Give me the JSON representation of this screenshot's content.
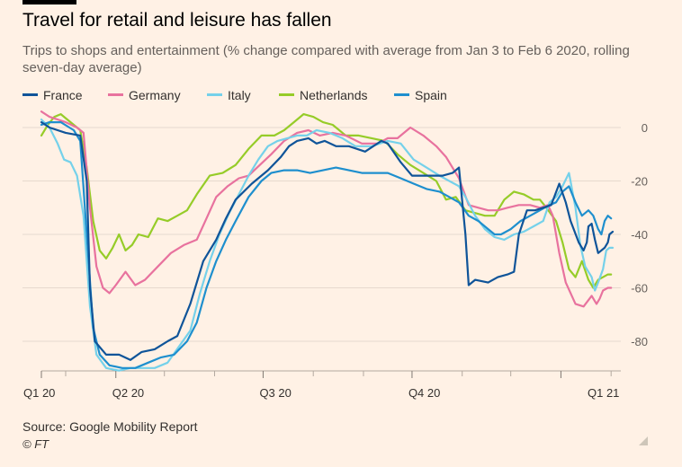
{
  "header": {
    "title": "Travel for retail and leisure has fallen",
    "subtitle": "Trips to shops and entertainment (% change compared with average from Jan 3 to Feb 6 2020, rolling seven-day average)"
  },
  "footer": {
    "source": "Source: Google Mobility Report",
    "credit": "© FT"
  },
  "chart_data": {
    "type": "line",
    "title": "Travel for retail and leisure has fallen",
    "subtitle": "Trips to shops and entertainment (% change compared with average from Jan 3 to Feb 6 2020, rolling seven-day average)",
    "xlabel": "",
    "ylabel": "",
    "y_axis_side": "right",
    "ylim": [
      -92,
      8
    ],
    "y_ticks": [
      0,
      -20,
      -40,
      -60,
      -80
    ],
    "y_tick_labels": [
      "0",
      "-20",
      "-40",
      "-60",
      "-80"
    ],
    "x_unit": "days since Feb 15 2020",
    "xlim": [
      0,
      358
    ],
    "x_ticks": [
      {
        "x": 0,
        "label": "Q1 20"
      },
      {
        "x": 46,
        "label": "Q2 20"
      },
      {
        "x": 137,
        "label": "Q3 20"
      },
      {
        "x": 229,
        "label": "Q4 20"
      },
      {
        "x": 321,
        "label": "Q1 21"
      }
    ],
    "x_minor_ticks": [
      15,
      76,
      107,
      168,
      199,
      260,
      290,
      352
    ],
    "grid": true,
    "legend_position": "top-left",
    "series": [
      {
        "name": "France",
        "color": "#0f5499",
        "points": [
          [
            0,
            2
          ],
          [
            5,
            0
          ],
          [
            15,
            -2
          ],
          [
            24,
            -3
          ],
          [
            28,
            -20
          ],
          [
            30,
            -60
          ],
          [
            33,
            -80
          ],
          [
            40,
            -85
          ],
          [
            48,
            -85
          ],
          [
            55,
            -87
          ],
          [
            62,
            -84
          ],
          [
            70,
            -83
          ],
          [
            78,
            -80
          ],
          [
            84,
            -78
          ],
          [
            92,
            -66
          ],
          [
            100,
            -50
          ],
          [
            108,
            -42
          ],
          [
            114,
            -34
          ],
          [
            120,
            -27
          ],
          [
            130,
            -21
          ],
          [
            140,
            -16
          ],
          [
            148,
            -11
          ],
          [
            153,
            -7
          ],
          [
            158,
            -5
          ],
          [
            165,
            -4
          ],
          [
            170,
            -6
          ],
          [
            175,
            -5
          ],
          [
            182,
            -7
          ],
          [
            190,
            -7
          ],
          [
            200,
            -9
          ],
          [
            210,
            -5
          ],
          [
            214,
            -6
          ],
          [
            222,
            -13
          ],
          [
            229,
            -18
          ],
          [
            238,
            -18
          ],
          [
            248,
            -18
          ],
          [
            254,
            -17
          ],
          [
            258,
            -15
          ],
          [
            262,
            -40
          ],
          [
            264,
            -59
          ],
          [
            268,
            -57
          ],
          [
            276,
            -58
          ],
          [
            282,
            -56
          ],
          [
            288,
            -55
          ],
          [
            292,
            -54
          ],
          [
            295,
            -40
          ],
          [
            300,
            -31
          ],
          [
            305,
            -31
          ],
          [
            310,
            -30
          ],
          [
            315,
            -29
          ],
          [
            320,
            -21
          ],
          [
            324,
            -28
          ],
          [
            327,
            -35
          ],
          [
            332,
            -43
          ],
          [
            335,
            -46
          ],
          [
            337,
            -43
          ],
          [
            338,
            -37
          ],
          [
            340,
            -36
          ],
          [
            342,
            -42
          ],
          [
            344,
            -47
          ],
          [
            348,
            -45
          ],
          [
            350,
            -43
          ],
          [
            351,
            -40
          ],
          [
            353,
            -39
          ]
        ]
      },
      {
        "name": "Germany",
        "color": "#e8729e",
        "points": [
          [
            0,
            6
          ],
          [
            5,
            4
          ],
          [
            15,
            2
          ],
          [
            22,
            0
          ],
          [
            26,
            -2
          ],
          [
            30,
            -30
          ],
          [
            34,
            -52
          ],
          [
            38,
            -60
          ],
          [
            42,
            -62
          ],
          [
            46,
            -59
          ],
          [
            52,
            -54
          ],
          [
            58,
            -59
          ],
          [
            64,
            -57
          ],
          [
            72,
            -52
          ],
          [
            80,
            -47
          ],
          [
            88,
            -44
          ],
          [
            96,
            -42
          ],
          [
            102,
            -34
          ],
          [
            108,
            -26
          ],
          [
            115,
            -22
          ],
          [
            122,
            -19
          ],
          [
            128,
            -18
          ],
          [
            135,
            -14
          ],
          [
            142,
            -10
          ],
          [
            150,
            -5
          ],
          [
            158,
            -2
          ],
          [
            165,
            -1
          ],
          [
            172,
            -3
          ],
          [
            180,
            -2
          ],
          [
            188,
            -3
          ],
          [
            198,
            -6
          ],
          [
            208,
            -6
          ],
          [
            214,
            -4
          ],
          [
            220,
            -4
          ],
          [
            228,
            0
          ],
          [
            236,
            -3
          ],
          [
            244,
            -7
          ],
          [
            250,
            -11
          ],
          [
            258,
            -19
          ],
          [
            264,
            -29
          ],
          [
            270,
            -30
          ],
          [
            276,
            -31
          ],
          [
            282,
            -31
          ],
          [
            288,
            -30
          ],
          [
            295,
            -29
          ],
          [
            302,
            -29
          ],
          [
            308,
            -30
          ],
          [
            313,
            -29
          ],
          [
            316,
            -33
          ],
          [
            320,
            -47
          ],
          [
            324,
            -58
          ],
          [
            330,
            -66
          ],
          [
            335,
            -67
          ],
          [
            340,
            -63
          ],
          [
            343,
            -66
          ],
          [
            345,
            -64
          ],
          [
            347,
            -61
          ],
          [
            350,
            -60
          ],
          [
            352,
            -60
          ]
        ]
      },
      {
        "name": "Italy",
        "color": "#75d1ea",
        "points": [
          [
            0,
            3
          ],
          [
            5,
            0
          ],
          [
            10,
            -6
          ],
          [
            14,
            -12
          ],
          [
            18,
            -13
          ],
          [
            22,
            -18
          ],
          [
            26,
            -33
          ],
          [
            30,
            -67
          ],
          [
            34,
            -85
          ],
          [
            40,
            -90
          ],
          [
            48,
            -91
          ],
          [
            55,
            -90
          ],
          [
            62,
            -90
          ],
          [
            70,
            -90
          ],
          [
            78,
            -88
          ],
          [
            85,
            -82
          ],
          [
            92,
            -76
          ],
          [
            98,
            -62
          ],
          [
            104,
            -50
          ],
          [
            110,
            -40
          ],
          [
            116,
            -32
          ],
          [
            122,
            -25
          ],
          [
            128,
            -18
          ],
          [
            134,
            -12
          ],
          [
            140,
            -7
          ],
          [
            146,
            -5
          ],
          [
            152,
            -4
          ],
          [
            158,
            -3
          ],
          [
            164,
            -3
          ],
          [
            170,
            -1
          ],
          [
            178,
            -2
          ],
          [
            186,
            -4
          ],
          [
            194,
            -7
          ],
          [
            204,
            -7
          ],
          [
            214,
            -5
          ],
          [
            222,
            -6
          ],
          [
            230,
            -12
          ],
          [
            238,
            -15
          ],
          [
            246,
            -18
          ],
          [
            252,
            -20
          ],
          [
            258,
            -22
          ],
          [
            262,
            -26
          ],
          [
            268,
            -33
          ],
          [
            274,
            -38
          ],
          [
            280,
            -41
          ],
          [
            286,
            -42
          ],
          [
            292,
            -40
          ],
          [
            298,
            -39
          ],
          [
            304,
            -37
          ],
          [
            310,
            -35
          ],
          [
            314,
            -28
          ],
          [
            318,
            -26
          ],
          [
            322,
            -22
          ],
          [
            326,
            -17
          ],
          [
            330,
            -30
          ],
          [
            333,
            -44
          ],
          [
            336,
            -52
          ],
          [
            340,
            -56
          ],
          [
            342,
            -61
          ],
          [
            344,
            -58
          ],
          [
            347,
            -53
          ],
          [
            349,
            -46
          ],
          [
            351,
            -45
          ],
          [
            353,
            -45
          ]
        ]
      },
      {
        "name": "Netherlands",
        "color": "#96cc28",
        "points": [
          [
            0,
            -3
          ],
          [
            4,
            1
          ],
          [
            8,
            4
          ],
          [
            12,
            5
          ],
          [
            16,
            3
          ],
          [
            20,
            1
          ],
          [
            24,
            -1
          ],
          [
            28,
            -15
          ],
          [
            32,
            -35
          ],
          [
            36,
            -46
          ],
          [
            40,
            -49
          ],
          [
            44,
            -45
          ],
          [
            48,
            -40
          ],
          [
            52,
            -46
          ],
          [
            56,
            -44
          ],
          [
            60,
            -40
          ],
          [
            66,
            -41
          ],
          [
            72,
            -34
          ],
          [
            78,
            -35
          ],
          [
            84,
            -33
          ],
          [
            90,
            -31
          ],
          [
            96,
            -25
          ],
          [
            104,
            -18
          ],
          [
            112,
            -17
          ],
          [
            120,
            -14
          ],
          [
            128,
            -8
          ],
          [
            136,
            -3
          ],
          [
            144,
            -3
          ],
          [
            150,
            -1
          ],
          [
            156,
            2
          ],
          [
            162,
            5
          ],
          [
            168,
            4
          ],
          [
            174,
            2
          ],
          [
            180,
            1
          ],
          [
            188,
            -3
          ],
          [
            196,
            -3
          ],
          [
            204,
            -4
          ],
          [
            212,
            -5
          ],
          [
            220,
            -10
          ],
          [
            228,
            -14
          ],
          [
            236,
            -17
          ],
          [
            244,
            -20
          ],
          [
            250,
            -27
          ],
          [
            256,
            -26
          ],
          [
            262,
            -31
          ],
          [
            268,
            -32
          ],
          [
            274,
            -33
          ],
          [
            280,
            -33
          ],
          [
            286,
            -27
          ],
          [
            292,
            -24
          ],
          [
            298,
            -25
          ],
          [
            304,
            -27
          ],
          [
            308,
            -27
          ],
          [
            312,
            -30
          ],
          [
            318,
            -35
          ],
          [
            322,
            -43
          ],
          [
            326,
            -53
          ],
          [
            330,
            -56
          ],
          [
            334,
            -50
          ],
          [
            338,
            -57
          ],
          [
            341,
            -60
          ],
          [
            344,
            -57
          ],
          [
            347,
            -56
          ],
          [
            350,
            -55
          ],
          [
            352,
            -55
          ]
        ]
      },
      {
        "name": "Spain",
        "color": "#1e8fce",
        "points": [
          [
            0,
            1
          ],
          [
            5,
            2
          ],
          [
            12,
            2
          ],
          [
            20,
            -1
          ],
          [
            24,
            -5
          ],
          [
            28,
            -40
          ],
          [
            32,
            -75
          ],
          [
            36,
            -85
          ],
          [
            42,
            -89
          ],
          [
            50,
            -90
          ],
          [
            58,
            -90
          ],
          [
            66,
            -88
          ],
          [
            74,
            -86
          ],
          [
            82,
            -85
          ],
          [
            90,
            -80
          ],
          [
            96,
            -73
          ],
          [
            102,
            -60
          ],
          [
            108,
            -50
          ],
          [
            114,
            -42
          ],
          [
            120,
            -35
          ],
          [
            128,
            -26
          ],
          [
            136,
            -20
          ],
          [
            142,
            -17
          ],
          [
            150,
            -16
          ],
          [
            158,
            -16
          ],
          [
            166,
            -17
          ],
          [
            174,
            -16
          ],
          [
            182,
            -15
          ],
          [
            190,
            -16
          ],
          [
            198,
            -17
          ],
          [
            206,
            -17
          ],
          [
            214,
            -17
          ],
          [
            222,
            -19
          ],
          [
            230,
            -21
          ],
          [
            238,
            -23
          ],
          [
            246,
            -24
          ],
          [
            252,
            -26
          ],
          [
            258,
            -28
          ],
          [
            264,
            -33
          ],
          [
            270,
            -35
          ],
          [
            276,
            -38
          ],
          [
            280,
            -40
          ],
          [
            284,
            -40
          ],
          [
            290,
            -38
          ],
          [
            296,
            -35
          ],
          [
            302,
            -33
          ],
          [
            308,
            -31
          ],
          [
            314,
            -29
          ],
          [
            318,
            -28
          ],
          [
            322,
            -24
          ],
          [
            326,
            -22
          ],
          [
            330,
            -28
          ],
          [
            334,
            -33
          ],
          [
            338,
            -31
          ],
          [
            341,
            -33
          ],
          [
            344,
            -38
          ],
          [
            346,
            -40
          ],
          [
            348,
            -35
          ],
          [
            350,
            -33
          ],
          [
            352,
            -34
          ]
        ]
      }
    ]
  }
}
